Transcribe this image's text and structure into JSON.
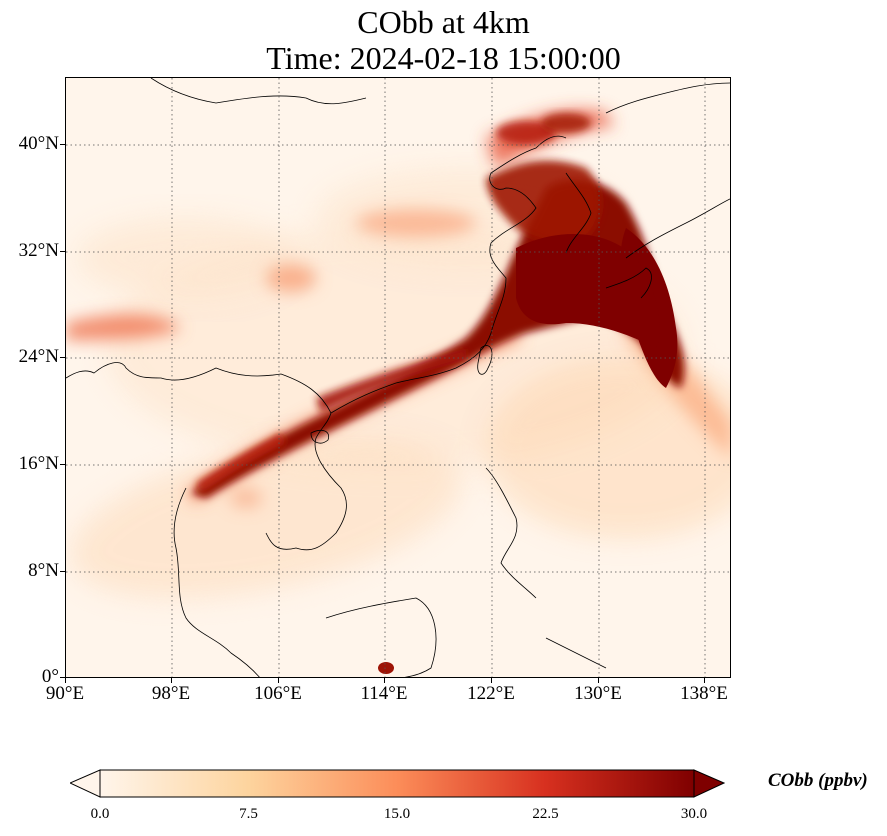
{
  "title": {
    "line1": "CObb at 4km",
    "line2": "Time: 2024-02-18 15:00:00"
  },
  "map": {
    "lon_range": [
      90,
      139.5
    ],
    "lat_range": [
      0,
      44.8
    ],
    "projection": "plate-carree",
    "gridlines": "dotted",
    "colormap": "OrRd",
    "colors": [
      "#fff5eb",
      "#fdd49e",
      "#fc8d59",
      "#d7301f",
      "#7f0000"
    ]
  },
  "axes": {
    "x_ticks": [
      "90°E",
      "98°E",
      "106°E",
      "114°E",
      "122°E",
      "130°E",
      "138°E"
    ],
    "y_ticks": [
      "0°",
      "8°N",
      "16°N",
      "24°N",
      "32°N",
      "40°N"
    ]
  },
  "colorbar": {
    "label": "CObb (ppbv)",
    "ticks": [
      "0.0",
      "7.5",
      "15.0",
      "22.5",
      "30.0"
    ],
    "min": 0,
    "max": 30,
    "extend": "both"
  }
}
